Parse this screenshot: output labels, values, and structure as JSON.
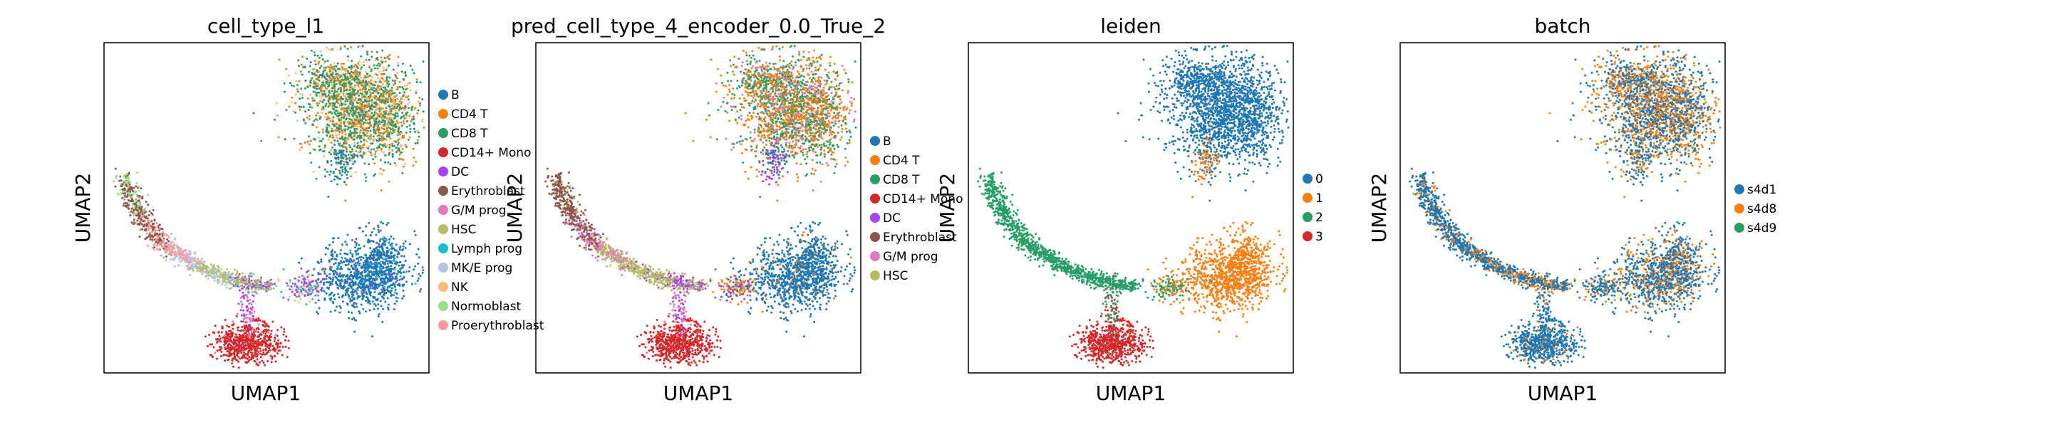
{
  "chart_data": [
    {
      "type": "scatter",
      "title": "cell_type_l1",
      "xlabel": "UMAP1",
      "ylabel": "UMAP2",
      "legend_position": "right",
      "legend": [
        {
          "name": "B",
          "color": "#1f77b4"
        },
        {
          "name": "CD4 T",
          "color": "#ff7f0e"
        },
        {
          "name": "CD8 T",
          "color": "#279e68"
        },
        {
          "name": "CD14+ Mono",
          "color": "#d62728"
        },
        {
          "name": "DC",
          "color": "#aa40fc"
        },
        {
          "name": "Erythroblast",
          "color": "#8c564b"
        },
        {
          "name": "G/M prog",
          "color": "#e377c2"
        },
        {
          "name": "HSC",
          "color": "#b5bd61"
        },
        {
          "name": "Lymph prog",
          "color": "#17becf"
        },
        {
          "name": "MK/E prog",
          "color": "#aec7e8"
        },
        {
          "name": "NK",
          "color": "#ffbb78"
        },
        {
          "name": "Normoblast",
          "color": "#98df8a"
        },
        {
          "name": "Proerythroblast",
          "color": "#ff9896"
        }
      ]
    },
    {
      "type": "scatter",
      "title": "pred_cell_type_4_encoder_0.0_True_2",
      "xlabel": "UMAP1",
      "ylabel": "UMAP2",
      "legend_position": "right",
      "legend": [
        {
          "name": "B",
          "color": "#1f77b4"
        },
        {
          "name": "CD4 T",
          "color": "#ff7f0e"
        },
        {
          "name": "CD8 T",
          "color": "#279e68"
        },
        {
          "name": "CD14+ Mono",
          "color": "#d62728"
        },
        {
          "name": "DC",
          "color": "#aa40fc"
        },
        {
          "name": "Erythroblast",
          "color": "#8c564b"
        },
        {
          "name": "G/M prog",
          "color": "#e377c2"
        },
        {
          "name": "HSC",
          "color": "#b5bd61"
        }
      ]
    },
    {
      "type": "scatter",
      "title": "leiden",
      "xlabel": "UMAP1",
      "ylabel": "UMAP2",
      "legend_position": "right",
      "legend": [
        {
          "name": "0",
          "color": "#1f77b4"
        },
        {
          "name": "1",
          "color": "#ff7f0e"
        },
        {
          "name": "2",
          "color": "#279e68"
        },
        {
          "name": "3",
          "color": "#d62728"
        }
      ]
    },
    {
      "type": "scatter",
      "title": "batch",
      "xlabel": "UMAP1",
      "ylabel": "UMAP2",
      "legend_position": "right",
      "legend": [
        {
          "name": "s4d1",
          "color": "#1f77b4"
        },
        {
          "name": "s4d8",
          "color": "#ff7f0e"
        },
        {
          "name": "s4d9",
          "color": "#279e68"
        }
      ]
    }
  ]
}
